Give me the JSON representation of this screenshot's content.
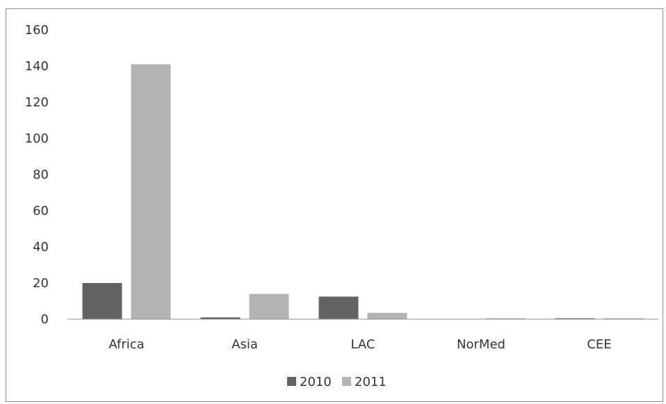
{
  "chart_data": {
    "type": "bar",
    "categories": [
      "Africa",
      "Asia",
      "LAC",
      "NorMed",
      "CEE"
    ],
    "series": [
      {
        "name": "2010",
        "values": [
          20,
          1,
          12.5,
          0,
          0.5
        ],
        "color": "#636363"
      },
      {
        "name": "2011",
        "values": [
          141,
          14,
          3.5,
          0.5,
          0.5
        ],
        "color": "#b3b3b3"
      }
    ],
    "ylim": [
      0,
      160
    ],
    "yticks": [
      "0",
      "20",
      "40",
      "60",
      "80",
      "100",
      "120",
      "140",
      "160"
    ],
    "grid": false,
    "legend": "bottom"
  }
}
